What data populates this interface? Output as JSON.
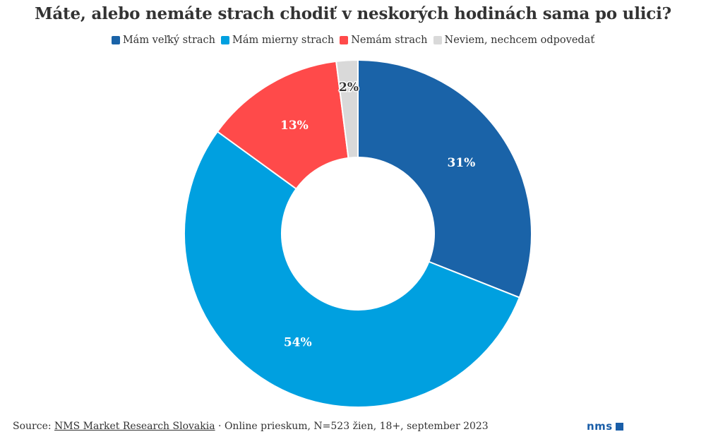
{
  "chart_data": {
    "type": "pie",
    "title": "Máte, alebo nemáte strach chodiť v neskorých hodinách sama po ulici?",
    "donut": true,
    "legend_position": "top",
    "categories": [
      "Mám veľký strach",
      "Mám mierny strach",
      "Nemám strach",
      "Neviem, nechcem odpovedať"
    ],
    "values": [
      31,
      54,
      13,
      2
    ],
    "labels": [
      "31%",
      "54%",
      "13%",
      "2%"
    ],
    "colors": [
      "#1a63a8",
      "#00a0e0",
      "#ff4a4a",
      "#d9d9d9"
    ],
    "label_colors": [
      "#ffffff",
      "#ffffff",
      "#ffffff",
      "#333333"
    ]
  },
  "footer": {
    "source_prefix": "Source: ",
    "source_link": "NMS Market Research Slovakia",
    "source_rest": " · Online prieskum, N=523 žien, 18+, september 2023"
  },
  "logo": {
    "text": "nms",
    "color": "#1a5ea8"
  }
}
